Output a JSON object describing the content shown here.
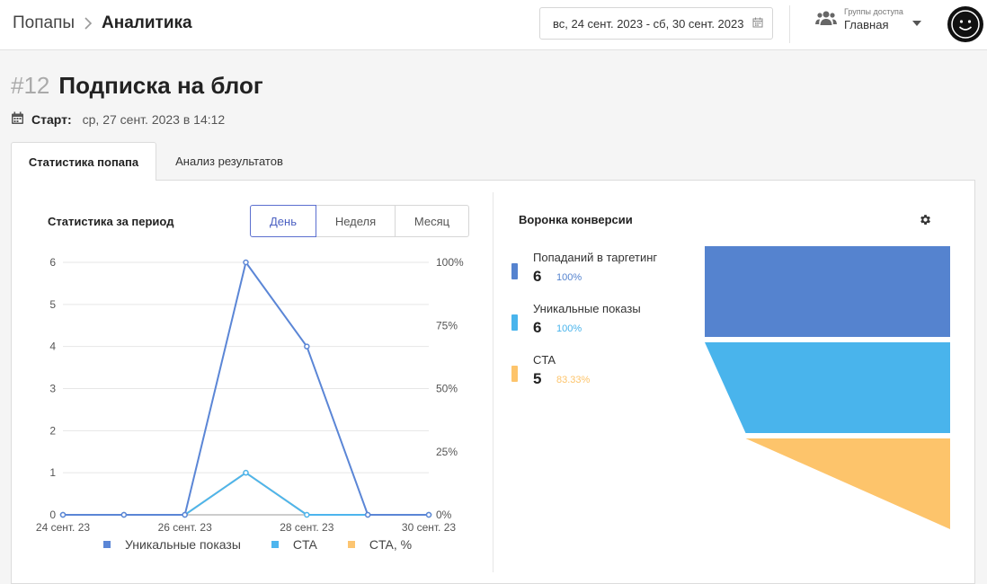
{
  "breadcrumb": {
    "parent": "Попапы",
    "current": "Аналитика"
  },
  "date_range": {
    "value": "вс, 24 сент. 2023 - сб, 30 сент. 2023",
    "icon": "calendar-icon"
  },
  "access": {
    "caption": "Группы доступа",
    "value": "Главная",
    "icon": "users-icon"
  },
  "avatar": {
    "icon": "smiley-face-icon"
  },
  "popup": {
    "number": "#12",
    "title": "Подписка на блог",
    "start_label": "Старт:",
    "start_value": "ср, 27 сент. 2023 в 14:12"
  },
  "tabs": [
    {
      "label": "Статистика попапа",
      "active": true
    },
    {
      "label": "Анализ результатов",
      "active": false
    }
  ],
  "stats": {
    "title": "Статистика за период",
    "periods": [
      {
        "label": "День",
        "active": true
      },
      {
        "label": "Неделя",
        "active": false
      },
      {
        "label": "Месяц",
        "active": false
      }
    ]
  },
  "chart_data": {
    "type": "line",
    "x": [
      "24 сент. 23",
      "25 сент. 23",
      "26 сент. 23",
      "27 сент. 23",
      "28 сент. 23",
      "29 сент. 23",
      "30 сент. 23"
    ],
    "x_tick_labels": [
      "24 сент. 23",
      "26 сент. 23",
      "28 сент. 23",
      "30 сент. 23"
    ],
    "y_left_ticks": [
      "0",
      "1",
      "2",
      "3",
      "4",
      "5",
      "6"
    ],
    "y_right_ticks": [
      "0%",
      "25%",
      "50%",
      "75%",
      "100%"
    ],
    "ylim": [
      0,
      6
    ],
    "y2lim": [
      0,
      100
    ],
    "grid": true,
    "legend_position": "bottom",
    "series": [
      {
        "name": "Уникальные показы",
        "color": "#5b86d6",
        "axis": "left",
        "values": [
          0,
          0,
          0,
          6,
          4,
          0,
          0
        ]
      },
      {
        "name": "CTA",
        "color": "#4db5ee",
        "axis": "left",
        "values": [
          0,
          0,
          0,
          1,
          0,
          0,
          0
        ]
      },
      {
        "name": "CTA, %",
        "color": "#fcc571",
        "axis": "right",
        "values": [
          0,
          0,
          0,
          16.67,
          0,
          0,
          0
        ]
      }
    ]
  },
  "funnel": {
    "title": "Воронка конверсии",
    "settings_icon": "gear-icon",
    "items": [
      {
        "label": "Попаданий в таргетинг",
        "count": "6",
        "percent": "100%",
        "color": "#5583cf",
        "value": 6
      },
      {
        "label": "Уникальные показы",
        "count": "6",
        "percent": "100%",
        "color": "#49b4ec",
        "value": 6
      },
      {
        "label": "CTA",
        "count": "5",
        "percent": "83.33%",
        "color": "#fdc46b",
        "value": 5
      }
    ]
  }
}
